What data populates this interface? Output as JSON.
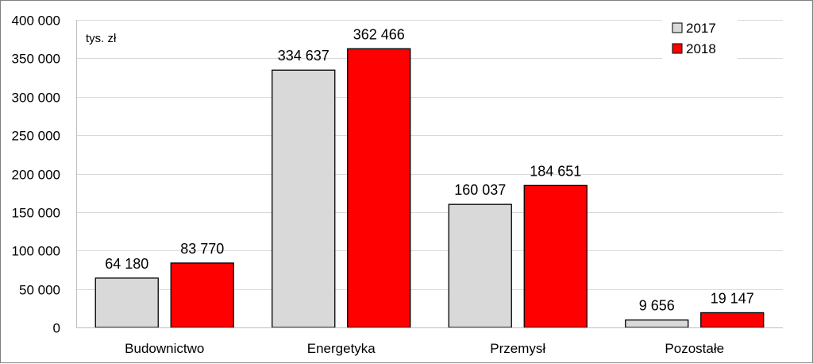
{
  "chart_data": {
    "type": "bar",
    "unit_label": "tys. zł",
    "categories": [
      "Budownictwo",
      "Energetyka",
      "Przemysł",
      "Pozostałe"
    ],
    "series": [
      {
        "name": "2017",
        "color": "#d9d9d9",
        "values": [
          64180,
          334637,
          160037,
          9656
        ],
        "labels": [
          "64 180",
          "334 637",
          "160 037",
          "9 656"
        ]
      },
      {
        "name": "2018",
        "color": "#ff0000",
        "values": [
          83770,
          362466,
          184651,
          19147
        ],
        "labels": [
          "83 770",
          "362 466",
          "184 651",
          "19 147"
        ]
      }
    ],
    "ylim": [
      0,
      400000
    ],
    "yticks": [
      0,
      50000,
      100000,
      150000,
      200000,
      250000,
      300000,
      350000,
      400000
    ],
    "ytick_labels": [
      "0",
      "50 000",
      "100 000",
      "150 000",
      "200 000",
      "250 000",
      "300 000",
      "350 000",
      "400 000"
    ],
    "grid": true,
    "legend_position": "top-right"
  }
}
